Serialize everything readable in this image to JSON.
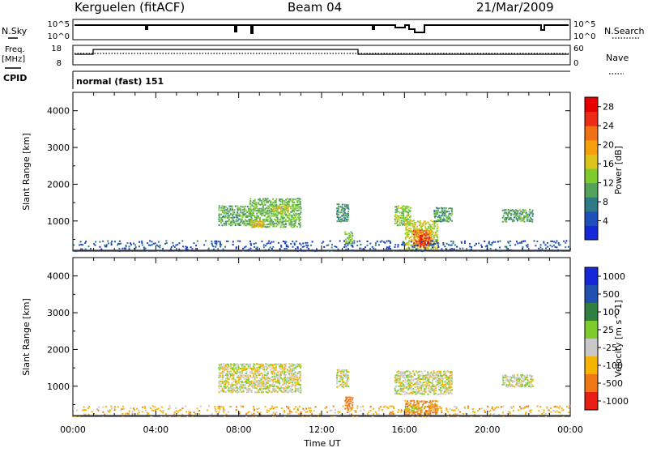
{
  "header": {
    "station": "Kerguelen (fitACF)",
    "beam": "Beam 04",
    "date": "21/Mar/2009"
  },
  "side_labels": {
    "nsky": "N.Sky",
    "freq_line1": "Freq.",
    "freq_line2": "[MHz]",
    "cpid": "CPID",
    "nsearch": "N.Search",
    "nave": "Nave"
  },
  "status_panel": {
    "nsky_ticks": [
      "10^5",
      "10^0"
    ],
    "nsearch_ticks": [
      "10^5",
      "10^0"
    ],
    "freq_ticks": [
      "18",
      "8"
    ],
    "nave_ticks": [
      "60",
      "0"
    ],
    "cpid_text": "normal (fast) 151"
  },
  "x_axis": {
    "label": "Time UT",
    "tick_labels": [
      "00:00",
      "04:00",
      "08:00",
      "12:00",
      "16:00",
      "20:00",
      "00:00"
    ],
    "hours": [
      0,
      4,
      8,
      12,
      16,
      20,
      24
    ]
  },
  "chart_data": [
    {
      "type": "heatmap",
      "title": "Power",
      "xlabel": "Time UT",
      "ylabel": "Slant Range [km]",
      "xlim": [
        0,
        24
      ],
      "ylim": [
        180,
        4500
      ],
      "yticks": [
        1000,
        2000,
        3000,
        4000
      ],
      "colorbar": {
        "label": "Power [dB]",
        "tick_labels": [
          "4",
          "8",
          "12",
          "16",
          "20",
          "24",
          "28"
        ],
        "range": [
          0,
          30
        ],
        "colors": [
          "#1428d8",
          "#1f4fb8",
          "#2f7a86",
          "#55a25a",
          "#7dcc2c",
          "#ddc41a",
          "#f5a00c",
          "#f07014",
          "#ec2c14",
          "#e80000"
        ]
      },
      "echo_regions": [
        {
          "t0": 7.0,
          "t1": 8.6,
          "r0": 900,
          "r1": 1450,
          "value": 11
        },
        {
          "t0": 8.5,
          "t1": 11.0,
          "r0": 850,
          "r1": 1650,
          "value": 12
        },
        {
          "t0": 8.6,
          "t1": 9.2,
          "r0": 850,
          "r1": 1050,
          "value": 18
        },
        {
          "t0": 9.6,
          "t1": 10.4,
          "r0": 1250,
          "r1": 1450,
          "value": 16
        },
        {
          "t0": 12.7,
          "t1": 13.3,
          "r0": 1000,
          "r1": 1500,
          "value": 9
        },
        {
          "t0": 13.1,
          "t1": 13.5,
          "r0": 400,
          "r1": 750,
          "value": 13
        },
        {
          "t0": 15.5,
          "t1": 16.3,
          "r0": 900,
          "r1": 1450,
          "value": 13
        },
        {
          "t0": 16.0,
          "t1": 17.6,
          "r0": 250,
          "r1": 1050,
          "value": 15
        },
        {
          "t0": 16.4,
          "t1": 17.3,
          "r0": 350,
          "r1": 800,
          "value": 22
        },
        {
          "t0": 16.7,
          "t1": 17.2,
          "r0": 300,
          "r1": 650,
          "value": 27
        },
        {
          "t0": 17.4,
          "t1": 18.3,
          "r0": 1000,
          "r1": 1400,
          "value": 10
        },
        {
          "t0": 20.7,
          "t1": 22.2,
          "r0": 1000,
          "r1": 1350,
          "value": 10
        },
        {
          "t0": 0.0,
          "t1": 24.0,
          "r0": 200,
          "r1": 500,
          "value": 5
        }
      ]
    },
    {
      "type": "heatmap",
      "title": "Velocity",
      "xlabel": "Time UT",
      "ylabel": "Slant Range [km]",
      "xlim": [
        0,
        24
      ],
      "ylim": [
        180,
        4500
      ],
      "yticks": [
        1000,
        2000,
        3000,
        4000
      ],
      "colorbar": {
        "label": "Velocity [m s^-1]",
        "tick_labels": [
          "1000",
          "500",
          "100",
          "25",
          "-25",
          "-100",
          "-500",
          "-1000"
        ],
        "bands": [
          {
            "color": "#1428d8",
            "from": 1000
          },
          {
            "color": "#2050b0",
            "from": 500
          },
          {
            "color": "#2f8040",
            "from": 100
          },
          {
            "color": "#7dcc2c",
            "from": 25
          },
          {
            "color": "#c8c8c8",
            "from": -25
          },
          {
            "color": "#f5b400",
            "from": -100
          },
          {
            "color": "#f07814",
            "from": -500
          },
          {
            "color": "#e81e14",
            "from": -1000
          }
        ]
      },
      "echo_regions": [
        {
          "t0": 7.0,
          "t1": 11.0,
          "r0": 850,
          "r1": 1650,
          "value": 0
        },
        {
          "t0": 12.7,
          "t1": 13.3,
          "r0": 1000,
          "r1": 1500,
          "value": 0
        },
        {
          "t0": 13.1,
          "t1": 13.5,
          "r0": 400,
          "r1": 750,
          "value": -300
        },
        {
          "t0": 15.5,
          "t1": 18.3,
          "r0": 800,
          "r1": 1450,
          "value": 0
        },
        {
          "t0": 16.0,
          "t1": 17.6,
          "r0": 250,
          "r1": 650,
          "value": -120
        },
        {
          "t0": 16.0,
          "t1": 16.8,
          "r0": 350,
          "r1": 500,
          "value": 60
        },
        {
          "t0": 20.7,
          "t1": 22.2,
          "r0": 1000,
          "r1": 1350,
          "value": 0
        },
        {
          "t0": 0.0,
          "t1": 24.0,
          "r0": 200,
          "r1": 500,
          "value": -60
        }
      ]
    }
  ]
}
